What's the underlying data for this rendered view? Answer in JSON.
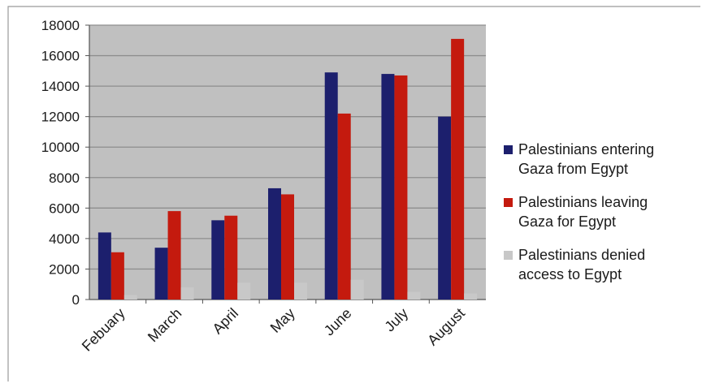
{
  "colors": {
    "background": "#ffffff",
    "plot_area": "#c0c0c0",
    "gridline": "#8e8e8e",
    "axis": "#555555",
    "frame": "#9a9a9a"
  },
  "chart_data": {
    "type": "bar",
    "categories": [
      "Febuary",
      "March",
      "April",
      "May",
      "June",
      "July",
      "August"
    ],
    "series": [
      {
        "name": "Palestinians entering\nGaza from Egypt",
        "color": "#1c1f6d",
        "values": [
          4400,
          3400,
          5200,
          7300,
          14900,
          14800,
          12000
        ]
      },
      {
        "name": "Palestinians leaving\nGaza for Egypt",
        "color": "#c41a0e",
        "values": [
          3100,
          5800,
          5500,
          6900,
          12200,
          14700,
          17100
        ]
      },
      {
        "name": "Palestinians denied\naccess to Egypt",
        "color": "#c8c8c8",
        "values": [
          300,
          800,
          1100,
          1100,
          1300,
          500,
          400
        ]
      }
    ],
    "yticks": [
      "0",
      "2000",
      "4000",
      "6000",
      "8000",
      "10000",
      "12000",
      "14000",
      "16000",
      "18000"
    ],
    "ylim": [
      0,
      18000
    ],
    "grid": true,
    "legend": "right"
  }
}
